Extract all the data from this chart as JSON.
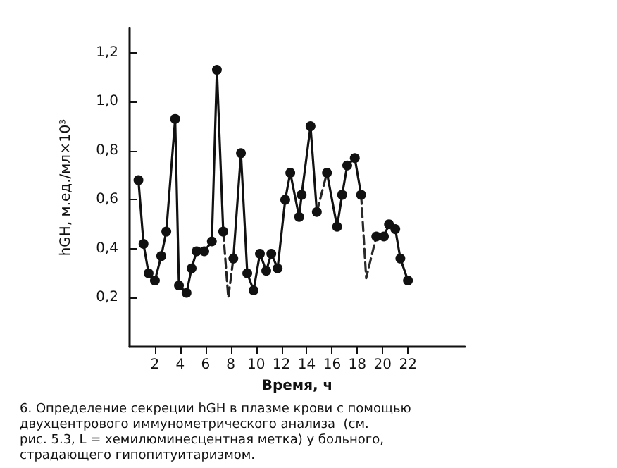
{
  "chart_data": {
    "type": "line",
    "xlabel": "Время, ч",
    "ylabel": "hGH, м.ед./мл×10³",
    "annotations": [
      "6. Определение секреции hGH в плазме крови с помощью двухцентрового иммунометрического анализа  (см. рис. 5.3, L = хемилюминесцентная метка) у больного, страдающего гипопитуитаризмом."
    ],
    "series": [
      {
        "color": "#111111",
        "marker": "circle",
        "line_style": "solid",
        "x": [
          0.7,
          1.1,
          1.5,
          2.0,
          2.5,
          2.9,
          3.6,
          3.9,
          4.5,
          4.9,
          5.3,
          5.9,
          6.5,
          6.9,
          7.4,
          7.8,
          8.2,
          8.8,
          9.3,
          9.8,
          10.3,
          10.8,
          11.2,
          11.7,
          12.3,
          12.7,
          13.4,
          13.6,
          14.3,
          14.8,
          15.2,
          15.6,
          16.4,
          16.8,
          17.2,
          17.8,
          18.3,
          18.9,
          19.5,
          20.1,
          20.5,
          21.0,
          21.4,
          22.0
        ],
        "values": [
          0.68,
          0.42,
          0.3,
          0.27,
          0.37,
          0.47,
          0.93,
          0.25,
          0.22,
          0.32,
          0.39,
          0.39,
          0.43,
          1.13,
          0.47,
          null,
          0.36,
          0.79,
          0.3,
          0.23,
          0.38,
          0.31,
          0.38,
          0.32,
          0.6,
          0.71,
          0.53,
          0.62,
          0.9,
          0.55,
          null,
          0.71,
          0.49,
          0.62,
          0.74,
          0.77,
          0.62,
          null,
          0.45,
          0.45,
          0.5,
          0.48,
          0.36,
          0.27
        ]
      },
      {
        "color": "#222222",
        "marker": "none",
        "line_style": "dashed",
        "x": [
          7.4,
          7.8,
          8.2
        ],
        "values": [
          0.47,
          0.2,
          0.36
        ]
      },
      {
        "color": "#262626",
        "marker": "none",
        "line_style": "dashed",
        "x": [
          14.8,
          15.6
        ],
        "values": [
          0.55,
          0.71
        ]
      },
      {
        "color": "#2a2a2a",
        "marker": "none",
        "line_style": "dashed",
        "x": [
          18.3,
          18.7,
          19.5
        ],
        "values": [
          0.62,
          0.28,
          0.45
        ]
      }
    ],
    "xlim": [
      0,
      26.5
    ],
    "xticks": [
      2,
      4,
      6,
      8,
      10,
      12,
      14,
      16,
      18,
      20,
      22
    ],
    "ylim": [
      0,
      1.3
    ],
    "yticks": [
      {
        "value": 0.2,
        "label": "0,2"
      },
      {
        "value": 0.4,
        "label": "0,4"
      },
      {
        "value": 0.6,
        "label": "0,6"
      },
      {
        "value": 0.8,
        "label": "0,8"
      },
      {
        "value": 1.0,
        "label": "1,0"
      },
      {
        "value": 1.2,
        "label": "1,2"
      }
    ],
    "grid": false
  }
}
